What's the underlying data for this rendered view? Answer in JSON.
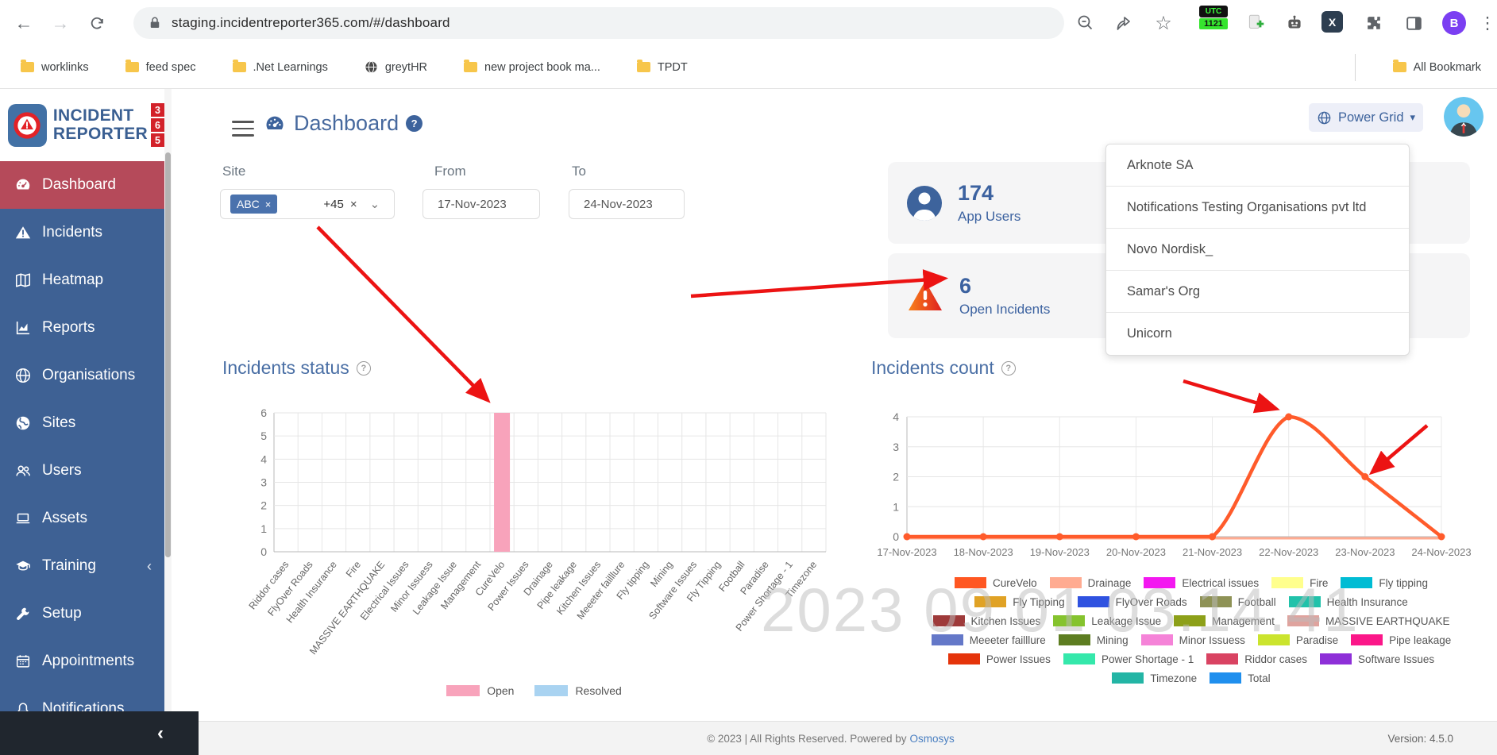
{
  "browser": {
    "url": "staging.incidentreporter365.com/#/dashboard",
    "bookmarks": [
      {
        "label": "worklinks",
        "icon": "folder-icon"
      },
      {
        "label": "feed spec",
        "icon": "folder-icon"
      },
      {
        "label": ".Net Learnings",
        "icon": "folder-icon"
      },
      {
        "label": "greytHR",
        "icon": "globe-icon"
      },
      {
        "label": "new project book ma...",
        "icon": "folder-icon"
      },
      {
        "label": "TPDT",
        "icon": "folder-icon"
      }
    ],
    "all_bookmarks": "All Bookmark",
    "profile_initial": "B",
    "x_extension_label": "X",
    "utc": {
      "line1": "UTC",
      "line2": "1121"
    }
  },
  "sidebar": {
    "logo": {
      "line1": "INCIDENT",
      "line2": "REPORTER",
      "digits": [
        "3",
        "6",
        "5"
      ]
    },
    "items": [
      {
        "label": "Dashboard",
        "icon": "gauge-icon",
        "active": true
      },
      {
        "label": "Incidents",
        "icon": "warning-triangle-icon"
      },
      {
        "label": "Heatmap",
        "icon": "map-icon"
      },
      {
        "label": "Reports",
        "icon": "chart-area-icon"
      },
      {
        "label": "Organisations",
        "icon": "globe-icon"
      },
      {
        "label": "Sites",
        "icon": "earth-icon"
      },
      {
        "label": "Users",
        "icon": "users-icon"
      },
      {
        "label": "Assets",
        "icon": "laptop-icon"
      },
      {
        "label": "Training",
        "icon": "graduation-cap-icon",
        "chevron": true
      },
      {
        "label": "Setup",
        "icon": "wrench-icon"
      },
      {
        "label": "Appointments",
        "icon": "calendar-icon"
      },
      {
        "label": "Notifications",
        "icon": "bell-icon"
      }
    ]
  },
  "header": {
    "title": "Dashboard",
    "org_selector": "Power Grid"
  },
  "filters": {
    "site_label": "Site",
    "site_chip": "ABC",
    "site_more": "+45",
    "from_label": "From",
    "from_value": "17-Nov-2023",
    "to_label": "To",
    "to_value": "24-Nov-2023"
  },
  "stats": [
    {
      "value": "174",
      "label": "App Users",
      "icon": "user-circle-icon"
    },
    {
      "value": "6",
      "label": "Open Incidents",
      "icon": "alert-triangle-icon"
    }
  ],
  "org_dropdown": [
    "Arknote SA",
    "Notifications Testing Organisations pvt ltd",
    "Novo Nordisk_",
    "Samar's Org",
    "Unicorn"
  ],
  "chart_data": [
    {
      "type": "bar",
      "title": "Incidents status",
      "categories": [
        "Riddor cases",
        "FlyOver Roads",
        "Health Insurance",
        "Fire",
        "MASSIVE EARTHQUAKE",
        "Electrical Issues",
        "Minor Issuess",
        "Leakage Issue",
        "Management",
        "CureVelo",
        "Power Issues",
        "Drainage",
        "Pipe leakage",
        "Kitchen Issues",
        "Meeeter failllure",
        "Fly tipping",
        "Mining",
        "Software Issues",
        "Fly Tipping",
        "Football",
        "Paradise",
        "Power Shortage - 1",
        "Timezone"
      ],
      "series": [
        {
          "name": "Open",
          "color": "#f8a3bb",
          "values": [
            0,
            0,
            0,
            0,
            0,
            0,
            0,
            0,
            0,
            6,
            0,
            0,
            0,
            0,
            0,
            0,
            0,
            0,
            0,
            0,
            0,
            0,
            0
          ]
        },
        {
          "name": "Resolved",
          "color": "#a9d3f1",
          "values": [
            0,
            0,
            0,
            0,
            0,
            0,
            0,
            0,
            0,
            0,
            0,
            0,
            0,
            0,
            0,
            0,
            0,
            0,
            0,
            0,
            0,
            0,
            0
          ]
        }
      ],
      "ylim": [
        0,
        6
      ],
      "grid": true,
      "legend_position": "bottom"
    },
    {
      "type": "line",
      "title": "Incidents count",
      "x": [
        "17-Nov-2023",
        "18-Nov-2023",
        "19-Nov-2023",
        "20-Nov-2023",
        "21-Nov-2023",
        "22-Nov-2023",
        "23-Nov-2023",
        "24-Nov-2023"
      ],
      "series": [
        {
          "name": "Drainage",
          "color": "#ffab91",
          "values": [
            0,
            0,
            0,
            0,
            0,
            0,
            0,
            0
          ]
        },
        {
          "name": "CureVelo",
          "color": "#ff5b2b",
          "values": [
            0,
            0,
            0,
            0,
            0,
            4,
            2,
            0
          ]
        }
      ],
      "ylim": [
        0,
        4
      ],
      "grid": true,
      "legend_position": "bottom",
      "legend": [
        {
          "label": "CureVelo",
          "color": "#ff5722"
        },
        {
          "label": "Drainage",
          "color": "#ffab91"
        },
        {
          "label": "Electrical issues",
          "color": "#f318f0"
        },
        {
          "label": "Fire",
          "color": "#ffff8d"
        },
        {
          "label": "Fly tipping",
          "color": "#00bcd4"
        },
        {
          "label": "Fly Tipping",
          "color": "#e0a225"
        },
        {
          "label": "FlyOver Roads",
          "color": "#2f52e0"
        },
        {
          "label": "Football",
          "color": "#8e9256"
        },
        {
          "label": "Health Insurance",
          "color": "#21c2aa"
        },
        {
          "label": "Kitchen Issues",
          "color": "#9e3a3a"
        },
        {
          "label": "Leakage Issue",
          "color": "#85c32e"
        },
        {
          "label": "Management",
          "color": "#8da019"
        },
        {
          "label": "MASSIVE EARTHQUAKE",
          "color": "#dfa39e"
        },
        {
          "label": "Meeeter failllure",
          "color": "#6478c8"
        },
        {
          "label": "Mining",
          "color": "#5d7d21"
        },
        {
          "label": "Minor Issuess",
          "color": "#f583d8"
        },
        {
          "label": "Paradise",
          "color": "#cbe42e"
        },
        {
          "label": "Pipe leakage",
          "color": "#fb1789"
        },
        {
          "label": "Power Issues",
          "color": "#e5340b"
        },
        {
          "label": "Power Shortage - 1",
          "color": "#35e8ab"
        },
        {
          "label": "Riddor cases",
          "color": "#d94362"
        },
        {
          "label": "Software Issues",
          "color": "#8e30d8"
        },
        {
          "label": "Timezone",
          "color": "#23b5a5"
        },
        {
          "label": "Total",
          "color": "#1f8fee"
        }
      ]
    }
  ],
  "footer": {
    "copyright": "© 2023 | All Rights Reserved. Powered by",
    "link": "Osmosys",
    "version": "Version: 4.5.0"
  },
  "watermark": "2023 09 01 03.14.41"
}
